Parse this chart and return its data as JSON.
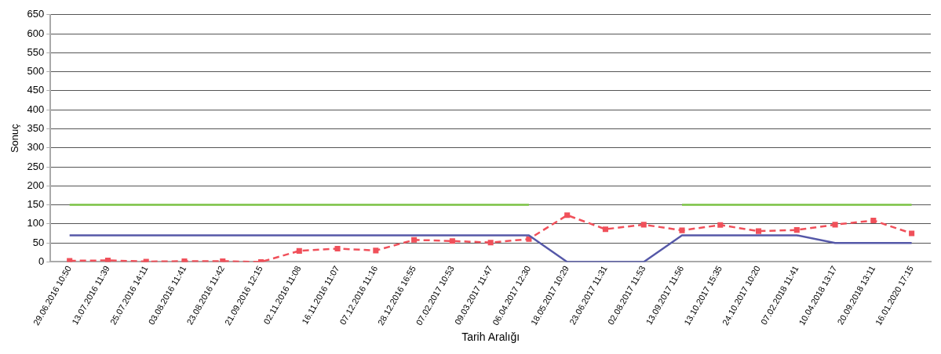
{
  "chart_data": {
    "type": "line",
    "xlabel": "Tarih Aralığı",
    "ylabel": "Sonuç",
    "categories": [
      "29.06.2016 10:50",
      "13.07.2016 11:39",
      "25.07.2016 14:11",
      "03.08.2016 11:41",
      "23.08.2016 11:42",
      "21.09.2016 12:15",
      "02.11.2016 11:08",
      "16.11.2016 11:07",
      "07.12.2016 11:16",
      "28.12.2016 16:55",
      "07.02.2017 10:53",
      "09.03.2017 11:47",
      "06.04.2017 12:30",
      "18.05.2017 10:29",
      "23.06.2017 11:31",
      "02.08.2017 11:53",
      "13.09.2017 11:56",
      "13.10.2017 15:35",
      "24.10.2017 10:20",
      "07.02.2018 11:41",
      "10.04.2018 13:17",
      "20.09.2018 13:11",
      "16.01.2020 17:15"
    ],
    "series": [
      {
        "color": "#7ac143",
        "marker": "none",
        "line_style": "solid",
        "values": [
          150,
          150,
          150,
          150,
          150,
          150,
          150,
          150,
          150,
          150,
          150,
          150,
          150,
          null,
          null,
          null,
          150,
          150,
          150,
          150,
          150,
          150,
          150
        ]
      },
      {
        "color": "#5558a8",
        "marker": "none",
        "line_style": "solid",
        "values": [
          70,
          70,
          70,
          70,
          70,
          70,
          70,
          70,
          70,
          70,
          70,
          70,
          70,
          0,
          0,
          0,
          70,
          70,
          70,
          70,
          50,
          50,
          50
        ]
      },
      {
        "color": "#f0505a",
        "marker": "square",
        "line_style": "dashed",
        "values": [
          3,
          4,
          1,
          2,
          2,
          0,
          29,
          35,
          30,
          58,
          55,
          51,
          60,
          123,
          86,
          98,
          83,
          97,
          81,
          84,
          98,
          109,
          75
        ]
      }
    ],
    "ylim": [
      0,
      650
    ],
    "yticks": [
      0,
      50,
      100,
      150,
      200,
      250,
      300,
      350,
      400,
      450,
      500,
      550,
      600,
      650
    ],
    "grid": "y",
    "legend": false
  }
}
